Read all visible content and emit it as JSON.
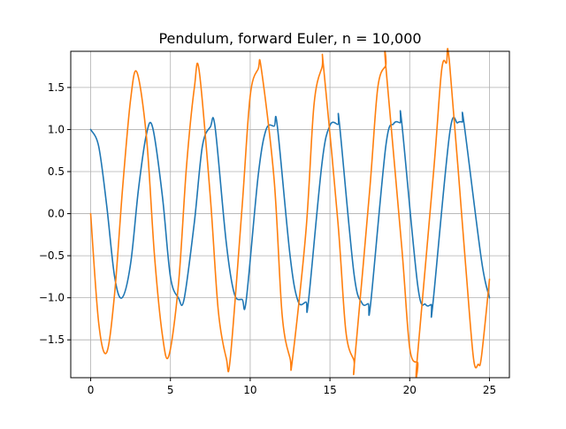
{
  "chart_data": {
    "type": "line",
    "title": "Pendulum, forward Euler, n = 10,000",
    "xlabel": "",
    "ylabel": "",
    "xlim": [
      -1.25,
      26.25
    ],
    "ylim": [
      -1.95,
      1.93
    ],
    "grid": true,
    "x_ticks": [
      0,
      5,
      10,
      15,
      20,
      25
    ],
    "x_tick_labels": [
      "0",
      "5",
      "10",
      "15",
      "20",
      "25"
    ],
    "y_ticks": [
      -1.5,
      -1.0,
      -0.5,
      0.0,
      0.5,
      1.0,
      1.5
    ],
    "y_tick_labels": [
      "−1.5",
      "−1.0",
      "−0.5",
      "0.0",
      "0.5",
      "1.0",
      "1.5"
    ],
    "series": [
      {
        "color": "#1f77b4",
        "x": [
          0,
          0.5,
          1.0,
          1.5,
          1.96,
          2.5,
          3.0,
          3.5,
          3.89,
          4.5,
          5.0,
          5.5,
          5.85,
          6.5,
          7.0,
          7.5,
          7.8,
          8.5,
          9.0,
          9.5,
          9.75,
          10.5,
          11.0,
          11.5,
          11.7,
          12.5,
          13.0,
          13.5,
          13.65,
          14.5,
          15.0,
          15.5,
          15.6,
          16.5,
          17.0,
          17.4,
          17.55,
          18.5,
          19.0,
          19.4,
          19.5,
          20.5,
          21.0,
          21.35,
          21.45,
          22.5,
          23.0,
          23.3,
          23.4,
          24.5,
          25.0
        ],
        "values": [
          1.0,
          0.8,
          0.1,
          -0.75,
          -1.0,
          -0.6,
          0.3,
          0.95,
          1.02,
          0.2,
          -0.75,
          -1.0,
          -1.02,
          -0.1,
          0.8,
          1.03,
          1.03,
          -0.35,
          -0.95,
          -1.02,
          -1.03,
          0.45,
          1.0,
          1.04,
          1.04,
          -0.5,
          -1.04,
          -1.05,
          -1.05,
          0.6,
          1.05,
          1.06,
          1.06,
          -0.7,
          -1.06,
          -1.07,
          -1.07,
          0.8,
          1.07,
          1.08,
          1.08,
          -0.85,
          -1.08,
          -1.08,
          -1.08,
          0.95,
          1.08,
          1.09,
          1.08,
          -0.55,
          -1.0
        ]
      },
      {
        "color": "#ff7f0e",
        "x": [
          0,
          0.5,
          1.0,
          1.5,
          2.0,
          2.5,
          2.9,
          3.5,
          4.0,
          4.5,
          4.9,
          5.5,
          6.0,
          6.5,
          6.8,
          7.5,
          8.0,
          8.5,
          8.75,
          9.5,
          10.0,
          10.5,
          10.7,
          11.5,
          12.0,
          12.5,
          12.65,
          13.5,
          14.0,
          14.5,
          14.6,
          15.5,
          16.0,
          16.5,
          16.55,
          17.5,
          18.0,
          18.5,
          18.5,
          19.5,
          20.0,
          20.5,
          20.45,
          21.5,
          22.0,
          22.3,
          22.5,
          23.5,
          24.0,
          24.3,
          24.5,
          25.0
        ],
        "values": [
          0.0,
          -1.3,
          -1.65,
          -0.95,
          0.3,
          1.35,
          1.68,
          0.9,
          -0.5,
          -1.45,
          -1.69,
          -0.85,
          0.55,
          1.5,
          1.7,
          0.2,
          -1.15,
          -1.72,
          -1.72,
          0.1,
          1.4,
          1.72,
          1.72,
          0.4,
          -1.2,
          -1.72,
          -1.73,
          -0.2,
          1.3,
          1.74,
          1.74,
          -0.1,
          -1.4,
          -1.74,
          -1.75,
          0.3,
          1.5,
          1.76,
          1.76,
          -0.4,
          -1.6,
          -1.77,
          -1.77,
          0.5,
          1.7,
          1.79,
          1.78,
          -0.6,
          -1.72,
          -1.79,
          -1.7,
          -0.78
        ]
      }
    ]
  }
}
